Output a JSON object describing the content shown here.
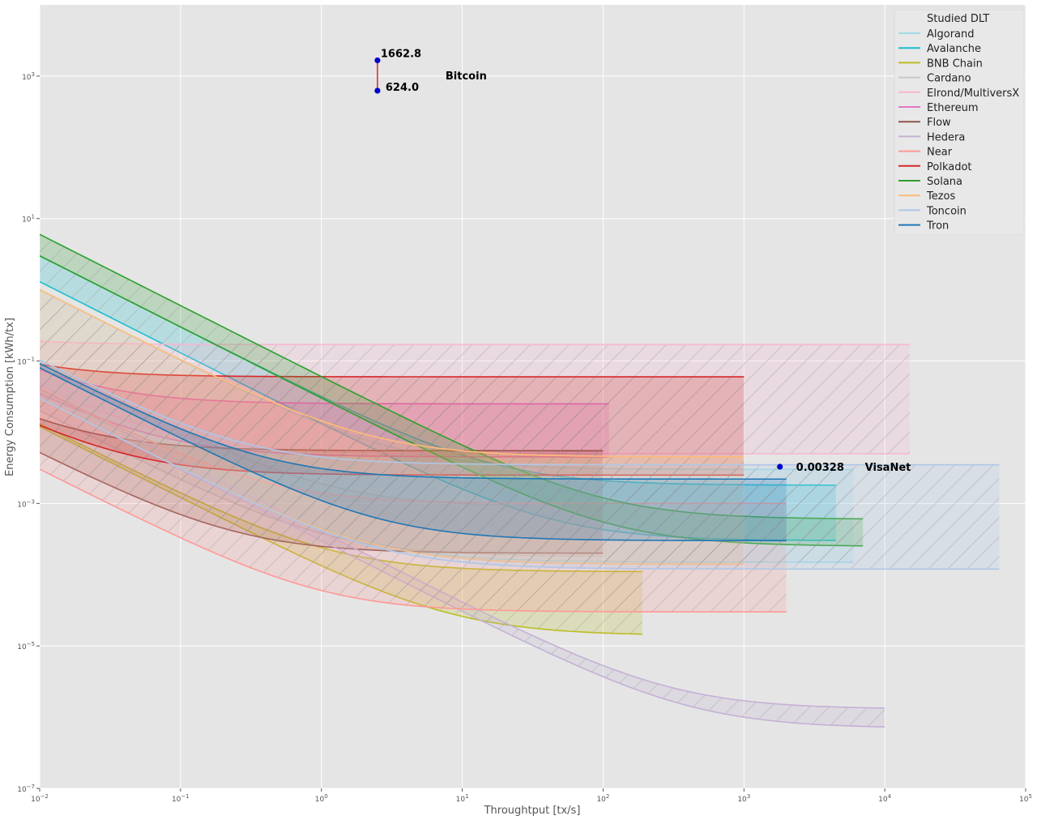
{
  "chart_data": {
    "type": "line",
    "title": "",
    "xlabel": "Throughtput [tx/s]",
    "ylabel": "Energy Consumption [kWh/tx]",
    "xscale": "log",
    "yscale": "log",
    "xlim": [
      0.01,
      100000
    ],
    "ylim": [
      1e-07,
      10000
    ],
    "grid": true,
    "x_ticks": [
      {
        "value": 0.01,
        "base": "10",
        "exp": "−2"
      },
      {
        "value": 0.1,
        "base": "10",
        "exp": "−1"
      },
      {
        "value": 1,
        "base": "10",
        "exp": "0"
      },
      {
        "value": 10,
        "base": "10",
        "exp": "1"
      },
      {
        "value": 100,
        "base": "10",
        "exp": "2"
      },
      {
        "value": 1000,
        "base": "10",
        "exp": "3"
      },
      {
        "value": 10000,
        "base": "10",
        "exp": "4"
      },
      {
        "value": 100000,
        "base": "10",
        "exp": "5"
      }
    ],
    "y_ticks": [
      {
        "value": 1e-07,
        "base": "10",
        "exp": "−7"
      },
      {
        "value": 1e-05,
        "base": "10",
        "exp": "−5"
      },
      {
        "value": 0.001,
        "base": "10",
        "exp": "−3"
      },
      {
        "value": 0.1,
        "base": "10",
        "exp": "−1"
      },
      {
        "value": 10,
        "base": "10",
        "exp": "1"
      },
      {
        "value": 1000,
        "base": "10",
        "exp": "3"
      }
    ],
    "legend": {
      "title": "Studied DLT",
      "location": "top-right"
    },
    "series": [
      {
        "name": "Algorand",
        "color": "#9edae5",
        "x_max": 6000,
        "upper": {
          "a": 0.01,
          "b": 0.003
        },
        "lower": {
          "a": 0.0003,
          "b": 0.00015
        }
      },
      {
        "name": "Avalanche",
        "color": "#17becf",
        "x_max": 4500,
        "upper": {
          "a": 0.03,
          "b": 0.0018
        },
        "lower": {
          "a": 0.013,
          "b": 0.0003
        }
      },
      {
        "name": "BNB Chain",
        "color": "#bcbd22",
        "x_max": 190,
        "upper": {
          "a": 0.00013,
          "b": 0.00011
        },
        "lower": {
          "a": 0.00012,
          "b": 1.4e-05
        }
      },
      {
        "name": "Cardano",
        "color": "#c7c7c7",
        "x_max": 100,
        "upper": {
          "a": 0.001,
          "b": 0.0009
        },
        "lower": {
          "a": 0.0002,
          "b": 0.00018
        }
      },
      {
        "name": "Elrond/MultiversX",
        "color": "#f7b6d2",
        "x_max": 15000,
        "upper": {
          "a": 0.0002,
          "b": 0.17
        },
        "lower": {
          "a": 0.0004,
          "b": 0.005
        }
      },
      {
        "name": "Ethereum",
        "color": "#e377c2",
        "x_max": 110,
        "upper": {
          "a": 0.0005,
          "b": 0.025
        },
        "lower": {
          "a": 0.0003,
          "b": 0.0045
        }
      },
      {
        "name": "Flow",
        "color": "#8c564b",
        "x_max": 100,
        "upper": {
          "a": 0.0001,
          "b": 0.0055
        },
        "lower": {
          "a": 5e-05,
          "b": 0.0002
        }
      },
      {
        "name": "Hedera",
        "color": "#c5b0d5",
        "x_max": 10000,
        "upper": {
          "a": 0.0004,
          "b": 1.3e-06
        },
        "lower": {
          "a": 0.0003,
          "b": 7e-07
        }
      },
      {
        "name": "Near",
        "color": "#ff9896",
        "x_max": 2000,
        "upper": {
          "a": 0.0004,
          "b": 0.001
        },
        "lower": {
          "a": 3e-05,
          "b": 3e-05
        }
      },
      {
        "name": "Polkadot",
        "color": "#d62728",
        "x_max": 1000,
        "upper": {
          "a": 0.0003,
          "b": 0.06
        },
        "lower": {
          "a": 0.0001,
          "b": 0.0025
        }
      },
      {
        "name": "Solana",
        "color": "#2ca02c",
        "x_max": 7000,
        "upper": {
          "a": 0.06,
          "b": 0.0006
        },
        "lower": {
          "a": 0.03,
          "b": 0.00025
        }
      },
      {
        "name": "Tezos",
        "color": "#ffbb78",
        "x_max": 1000,
        "upper": {
          "a": 0.01,
          "b": 0.0045
        },
        "lower": {
          "a": 0.0003,
          "b": 0.00014
        }
      },
      {
        "name": "Toncoin",
        "color": "#aec7e8",
        "x_max": 65000,
        "upper": {
          "a": 0.001,
          "b": 0.0035
        },
        "lower": {
          "a": 0.0003,
          "b": 0.00012
        }
      },
      {
        "name": "Tron",
        "color": "#1f77b4",
        "x_max": 2000,
        "upper": {
          "a": 0.0009,
          "b": 0.0022
        },
        "lower": {
          "a": 0.0008,
          "b": 0.0003
        }
      }
    ],
    "annotations": [
      {
        "label": "Bitcoin",
        "x": 2.5,
        "points": [
          {
            "y": 1662.8,
            "text": "1662.8"
          },
          {
            "y": 624.0,
            "text": "624.0"
          }
        ],
        "range_color": "#d62728",
        "marker_color": "#0000cc"
      },
      {
        "label": "VisaNet",
        "x": 1800,
        "points": [
          {
            "y": 0.00328,
            "text": "0.00328"
          }
        ],
        "marker_color": "#0000cc"
      }
    ]
  }
}
